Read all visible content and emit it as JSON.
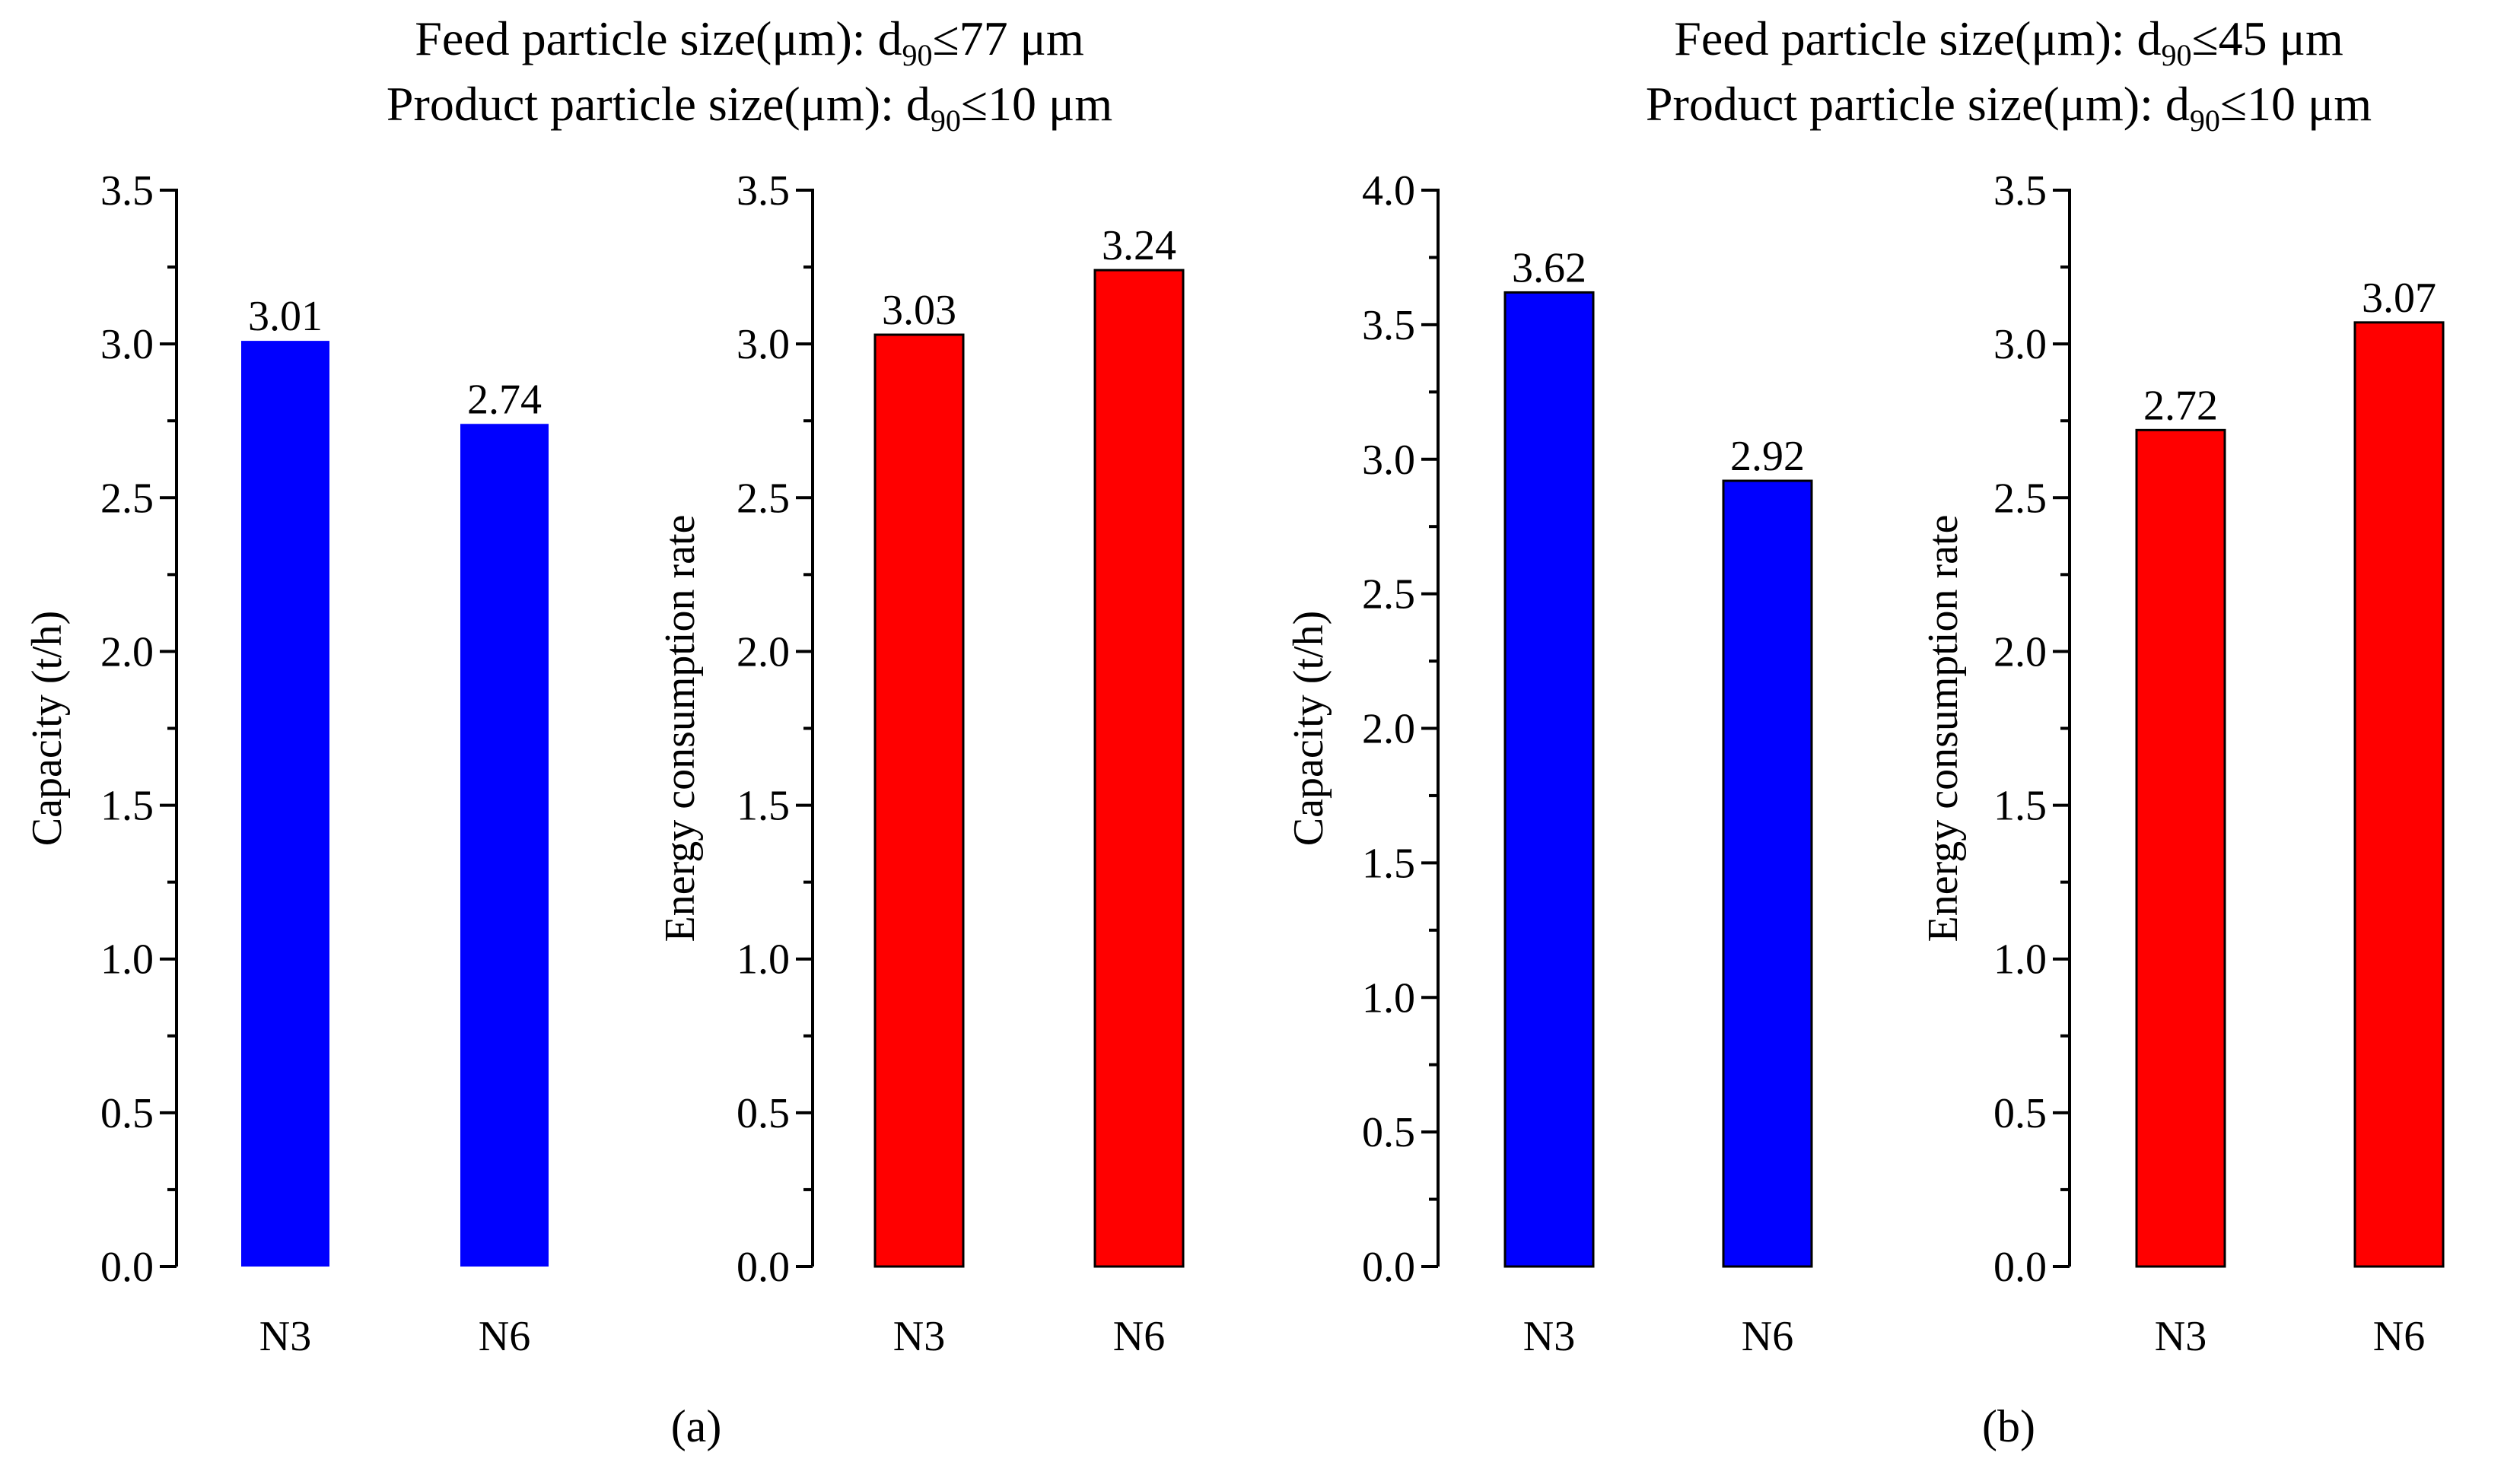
{
  "groups": [
    {
      "id": "a",
      "label": "(a)",
      "title_line1": {
        "prefix": "Feed particle size(μm): d",
        "sub": "90",
        "suffix": "≤77 μm"
      },
      "title_line2": {
        "prefix": "Product particle size(μm): d",
        "sub": "90",
        "suffix": "≤10 μm"
      }
    },
    {
      "id": "b",
      "label": "(b)",
      "title_line1": {
        "prefix": "Feed particle size(μm): d",
        "sub": "90",
        "suffix": "≤45 μm"
      },
      "title_line2": {
        "prefix": "Product particle size(μm): d",
        "sub": "90",
        "suffix": "≤10 μm"
      }
    }
  ],
  "chart_data": [
    {
      "type": "bar",
      "group": "a",
      "categories": [
        "N3",
        "N6"
      ],
      "values": [
        3.01,
        2.74
      ],
      "value_labels": [
        "3.01",
        "2.74"
      ],
      "ylabel": "Capacity (t/h)",
      "ylim": [
        0,
        3.5
      ],
      "major_step": 0.5,
      "tick_labels": [
        "0.0",
        "0.5",
        "1.0",
        "1.5",
        "2.0",
        "2.5",
        "3.0",
        "3.5"
      ],
      "color": "#0000ff",
      "bar_outline": false
    },
    {
      "type": "bar",
      "group": "a",
      "categories": [
        "N3",
        "N6"
      ],
      "values": [
        3.03,
        3.24
      ],
      "value_labels": [
        "3.03",
        "3.24"
      ],
      "ylabel": "Energy consumption rate",
      "ylim": [
        0,
        3.5
      ],
      "major_step": 0.5,
      "tick_labels": [
        "0.0",
        "0.5",
        "1.0",
        "1.5",
        "2.0",
        "2.5",
        "3.0",
        "3.5"
      ],
      "color": "#ff0000",
      "bar_outline": true
    },
    {
      "type": "bar",
      "group": "b",
      "categories": [
        "N3",
        "N6"
      ],
      "values": [
        3.62,
        2.92
      ],
      "value_labels": [
        "3.62",
        "2.92"
      ],
      "ylabel": "Capacity (t/h)",
      "ylim": [
        0,
        4.0
      ],
      "major_step": 0.5,
      "tick_labels": [
        "0.0",
        "0.5",
        "1.0",
        "1.5",
        "2.0",
        "2.5",
        "3.0",
        "3.5",
        "4.0"
      ],
      "color": "#0000ff",
      "bar_outline": true
    },
    {
      "type": "bar",
      "group": "b",
      "categories": [
        "N3",
        "N6"
      ],
      "values": [
        2.72,
        3.07
      ],
      "value_labels": [
        "2.72",
        "3.07"
      ],
      "ylabel": "Energy consumption rate",
      "ylim": [
        0,
        3.5
      ],
      "major_step": 0.5,
      "tick_labels": [
        "0.0",
        "0.5",
        "1.0",
        "1.5",
        "2.0",
        "2.5",
        "3.0",
        "3.5"
      ],
      "color": "#ff0000",
      "bar_outline": true
    }
  ]
}
